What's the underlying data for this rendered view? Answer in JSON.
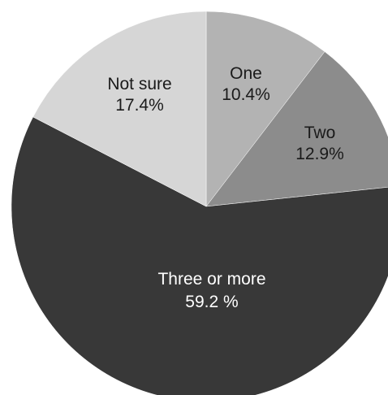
{
  "chart_data": {
    "type": "pie",
    "start_angle_deg": 0,
    "direction": "clockwise",
    "slices": [
      {
        "label": "One",
        "value": 10.4,
        "value_label": "10.4%",
        "color": "#b3b3b3",
        "text_color": "#1a1a1a"
      },
      {
        "label": "Two",
        "value": 12.9,
        "value_label": "12.9%",
        "color": "#8c8c8c",
        "text_color": "#1a1a1a"
      },
      {
        "label": "Three or more",
        "value": 59.2,
        "value_label": "59.2 %",
        "color": "#383838",
        "text_color": "#ffffff"
      },
      {
        "label": "Not sure",
        "value": 17.4,
        "value_label": "17.4%",
        "color": "#d6d6d6",
        "text_color": "#1a1a1a"
      }
    ]
  }
}
